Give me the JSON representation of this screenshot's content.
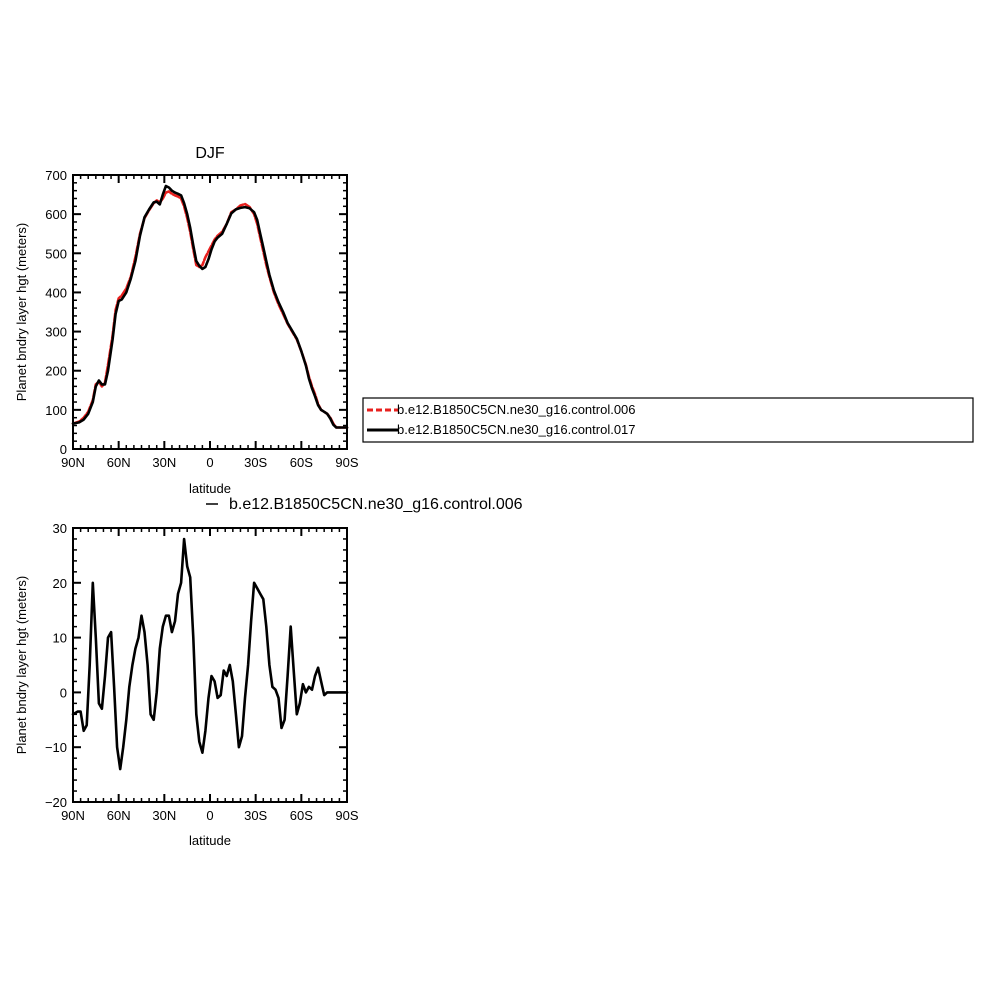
{
  "chart_data": [
    {
      "type": "line",
      "title": "DJF",
      "xlabel": "latitude",
      "ylabel": "Planet bndry layer hgt (meters)",
      "xlim": [
        -90,
        90
      ],
      "ylim": [
        0,
        700
      ],
      "xticks": [
        -90,
        -60,
        -30,
        0,
        30,
        60,
        90
      ],
      "xticklabels": [
        "90N",
        "60N",
        "30N",
        "0",
        "30S",
        "60S",
        "90S"
      ],
      "yticks": [
        0,
        100,
        200,
        300,
        400,
        500,
        600,
        700
      ],
      "yticklabels": [
        "0",
        "100",
        "200",
        "300",
        "400",
        "500",
        "600",
        "700"
      ],
      "grid": false,
      "legend_position": "right",
      "series": [
        {
          "name": "b.e12.B1850C5CN.ne30_g16.control.006",
          "color": "#e8201e",
          "style": "dashed",
          "x": [
            -90,
            -86,
            -83,
            -80,
            -77,
            -75,
            -73,
            -71,
            -69,
            -67,
            -64,
            -62,
            -60,
            -58,
            -55,
            -52,
            -49,
            -46,
            -43,
            -40,
            -37,
            -35,
            -33,
            -31,
            -29,
            -27,
            -25,
            -23,
            -21,
            -19,
            -17,
            -15,
            -13,
            -11,
            -9,
            -7,
            -5,
            -3,
            -1,
            1,
            3,
            5,
            8,
            11,
            14,
            17,
            20,
            23,
            26,
            29,
            31,
            33,
            35,
            37,
            39,
            42,
            45,
            48,
            51,
            54,
            57,
            60,
            63,
            65,
            67,
            69,
            71,
            73,
            75,
            77,
            79,
            81,
            83,
            85,
            87,
            89,
            90
          ],
          "values": [
            65,
            70,
            80,
            95,
            125,
            165,
            172,
            160,
            170,
            215,
            290,
            355,
            385,
            392,
            410,
            440,
            490,
            550,
            590,
            610,
            628,
            635,
            630,
            640,
            655,
            658,
            652,
            648,
            645,
            640,
            620,
            590,
            555,
            510,
            470,
            465,
            470,
            490,
            505,
            520,
            535,
            545,
            555,
            575,
            605,
            612,
            622,
            626,
            618,
            600,
            575,
            540,
            505,
            470,
            440,
            400,
            370,
            345,
            320,
            300,
            280,
            250,
            215,
            185,
            160,
            140,
            115,
            100,
            95,
            90,
            80,
            65,
            55,
            55,
            55,
            55,
            55
          ]
        },
        {
          "name": "b.e12.B1850C5CN.ne30_g16.control.017",
          "color": "#000000",
          "style": "solid",
          "x": [
            -90,
            -86,
            -83,
            -80,
            -77,
            -75,
            -73,
            -71,
            -69,
            -67,
            -64,
            -62,
            -60,
            -58,
            -55,
            -52,
            -49,
            -46,
            -43,
            -40,
            -37,
            -35,
            -33,
            -31,
            -29,
            -27,
            -25,
            -23,
            -21,
            -19,
            -17,
            -15,
            -13,
            -11,
            -9,
            -7,
            -5,
            -3,
            -1,
            1,
            3,
            5,
            8,
            11,
            14,
            17,
            20,
            23,
            26,
            29,
            31,
            33,
            35,
            37,
            39,
            42,
            45,
            48,
            51,
            54,
            57,
            60,
            63,
            65,
            67,
            69,
            71,
            73,
            75,
            77,
            79,
            81,
            83,
            85,
            87,
            89,
            90
          ],
          "values": [
            65,
            68,
            75,
            90,
            120,
            160,
            175,
            165,
            165,
            200,
            280,
            345,
            378,
            382,
            400,
            435,
            480,
            545,
            592,
            612,
            630,
            632,
            625,
            650,
            672,
            668,
            660,
            655,
            652,
            648,
            628,
            600,
            565,
            520,
            480,
            468,
            460,
            465,
            485,
            510,
            530,
            540,
            550,
            575,
            602,
            612,
            616,
            618,
            615,
            605,
            585,
            550,
            515,
            480,
            445,
            405,
            375,
            350,
            322,
            302,
            282,
            250,
            213,
            180,
            155,
            135,
            112,
            100,
            95,
            90,
            78,
            62,
            55,
            55,
            55,
            55,
            55
          ]
        }
      ]
    },
    {
      "type": "line",
      "title": "",
      "subtitle": "b.e12.B1850C5CN.ne30_g16.control.006",
      "xlabel": "latitude",
      "ylabel": "Planet bndry layer hgt (meters)",
      "xlim": [
        -90,
        90
      ],
      "ylim": [
        -20,
        30
      ],
      "xticks": [
        -90,
        -60,
        -30,
        0,
        30,
        60,
        90
      ],
      "xticklabels": [
        "90N",
        "60N",
        "30N",
        "0",
        "30S",
        "60S",
        "90S"
      ],
      "yticks": [
        -20,
        -10,
        0,
        10,
        20,
        30
      ],
      "yticklabels": [
        "−20",
        "−10",
        "0",
        "10",
        "20",
        "30"
      ],
      "grid": false,
      "series": [
        {
          "color": "#000000",
          "style": "solid",
          "x": [
            -90,
            -87,
            -85,
            -83,
            -81,
            -79,
            -77,
            -75,
            -73,
            -71,
            -69,
            -67,
            -65,
            -63,
            -61,
            -59,
            -57,
            -55,
            -53,
            -51,
            -49,
            -47,
            -45,
            -43,
            -41,
            -39,
            -37,
            -35,
            -33,
            -31,
            -29,
            -27,
            -25,
            -23,
            -21,
            -19,
            -17,
            -15,
            -13,
            -11,
            -9,
            -7,
            -5,
            -3,
            -1,
            1,
            3,
            5,
            7,
            9,
            11,
            13,
            15,
            17,
            19,
            21,
            23,
            25,
            27,
            29,
            31,
            33,
            35,
            37,
            39,
            41,
            43,
            45,
            47,
            49,
            51,
            53,
            55,
            57,
            59,
            61,
            63,
            65,
            67,
            69,
            71,
            73,
            75,
            77,
            79,
            81,
            83,
            85,
            87,
            89,
            90
          ],
          "values": [
            -4,
            -3.5,
            -3.5,
            -7,
            -6,
            5,
            20,
            10,
            -2,
            -3,
            3,
            10,
            11,
            1,
            -10,
            -14,
            -10,
            -5,
            1,
            5,
            8,
            10,
            14,
            11,
            5,
            -4,
            -5,
            0,
            8,
            12,
            14,
            14,
            11,
            13,
            18,
            20,
            28,
            23,
            21,
            10,
            -4,
            -9,
            -11,
            -7,
            -1,
            3,
            2,
            -1,
            -0.5,
            4,
            3,
            5,
            2,
            -4,
            -10,
            -8,
            -1,
            5,
            13,
            20,
            19,
            18,
            17,
            12,
            5,
            1,
            0.5,
            -1,
            -6.5,
            -5,
            3,
            12,
            4,
            -4,
            -2,
            1.5,
            0,
            1,
            0.5,
            3,
            4.5,
            2,
            -0.5,
            0,
            0,
            0,
            0,
            0,
            0,
            0,
            0
          ]
        }
      ]
    }
  ]
}
